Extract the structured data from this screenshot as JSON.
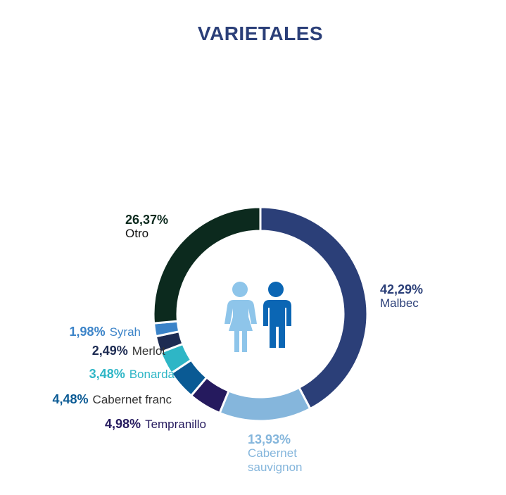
{
  "chart_data": {
    "type": "donut",
    "title": "VARIETALES",
    "categories": [
      "Malbec",
      "Cabernet sauvignon",
      "Tempranillo",
      "Cabernet franc",
      "Bonarda",
      "Merlot",
      "Syrah",
      "Otro"
    ],
    "values": [
      42.29,
      13.93,
      4.98,
      4.48,
      3.48,
      2.49,
      1.98,
      26.37
    ],
    "value_labels": [
      "42,29%",
      "13,93%",
      "4,98%",
      "4,48%",
      "3,48%",
      "2,49%",
      "1,98%",
      "26,37%"
    ],
    "colors": [
      "#2b3f78",
      "#85b6dc",
      "#251a5e",
      "#0a5a94",
      "#2eb6c6",
      "#1d2b52",
      "#3b83c8",
      "#0c2a1e"
    ]
  }
}
